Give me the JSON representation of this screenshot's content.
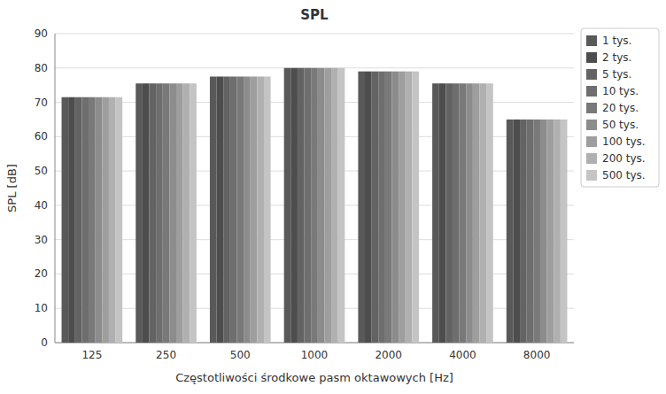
{
  "chart_data": {
    "type": "bar",
    "title": "SPL",
    "xlabel": "Częstotliwości środkowe pasm oktawowych [Hz]",
    "ylabel": "SPL [dB]",
    "categories": [
      "125",
      "250",
      "500",
      "1000",
      "2000",
      "4000",
      "8000"
    ],
    "series": [
      {
        "name": "1 tys.",
        "color": "#595959",
        "values": [
          71.5,
          75.5,
          77.5,
          80.0,
          79.0,
          75.5,
          65.0
        ]
      },
      {
        "name": "2 tys.",
        "color": "#4d4d4d",
        "values": [
          71.5,
          75.5,
          77.5,
          80.0,
          79.0,
          75.5,
          65.0
        ]
      },
      {
        "name": "5 tys.",
        "color": "#636363",
        "values": [
          71.5,
          75.5,
          77.5,
          80.0,
          79.0,
          75.5,
          65.0
        ]
      },
      {
        "name": "10 tys.",
        "color": "#6e6e6e",
        "values": [
          71.5,
          75.5,
          77.5,
          80.0,
          79.0,
          75.5,
          65.0
        ]
      },
      {
        "name": "20 tys.",
        "color": "#797979",
        "values": [
          71.5,
          75.5,
          77.5,
          80.0,
          79.0,
          75.5,
          65.0
        ]
      },
      {
        "name": "50 tys.",
        "color": "#8c8c8c",
        "values": [
          71.5,
          75.5,
          77.5,
          80.0,
          79.0,
          75.5,
          65.0
        ]
      },
      {
        "name": "100 tys.",
        "color": "#9e9e9e",
        "values": [
          71.5,
          75.5,
          77.5,
          80.0,
          79.0,
          75.5,
          65.0
        ]
      },
      {
        "name": "200 tys.",
        "color": "#b0b0b0",
        "values": [
          71.5,
          75.5,
          77.5,
          80.0,
          79.0,
          75.5,
          65.0
        ]
      },
      {
        "name": "500 tys.",
        "color": "#c4c4c4",
        "values": [
          71.5,
          75.5,
          77.5,
          80.0,
          79.0,
          75.5,
          65.0
        ]
      }
    ],
    "ylim": [
      0,
      90
    ],
    "yticks": [
      0,
      10,
      20,
      30,
      40,
      50,
      60,
      70,
      80,
      90
    ],
    "grid": true,
    "legend": "right"
  }
}
